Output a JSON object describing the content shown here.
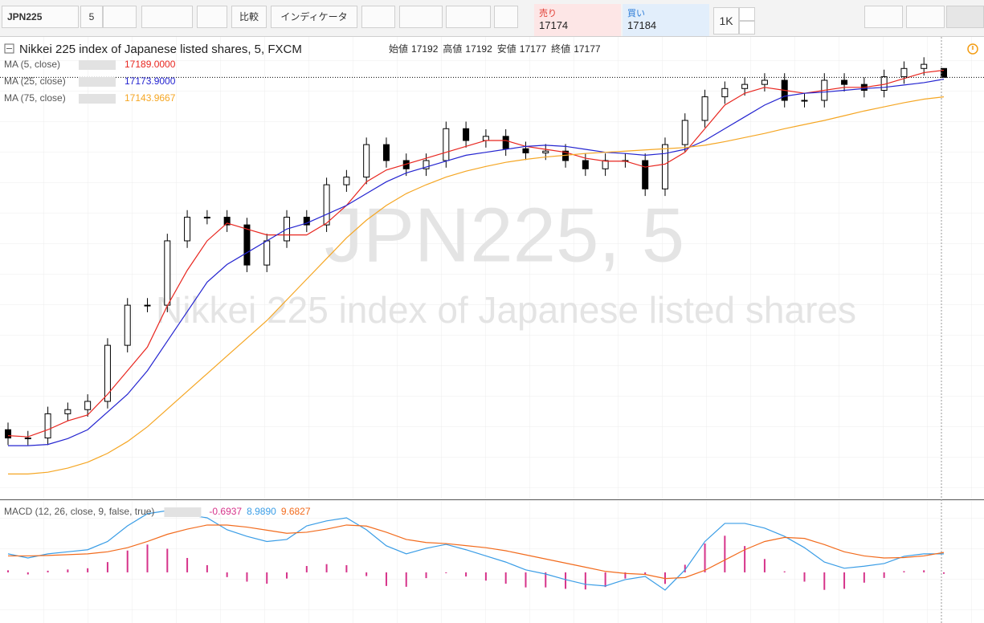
{
  "toolbar": {
    "symbol": "JPN225",
    "interval": "5",
    "compare": "比較",
    "indicators": "インディケータ",
    "sell": {
      "label": "売り",
      "price": 17174
    },
    "buy": {
      "label": "買い",
      "price": 17184
    },
    "quantity": "1K"
  },
  "chart_data": [
    {
      "type": "candlestick",
      "title": "Nikkei 225 index of Japanese listed shares, 5, FXCM",
      "watermark": "JPN225, 5",
      "watermark_subtitle": "Nikkei 225 index of Japanese listed shares",
      "ohlc_labels": [
        {
          "label": "始値",
          "value": 17192
        },
        {
          "label": "高値",
          "value": 17192
        },
        {
          "label": "安値",
          "value": 17177
        },
        {
          "label": "終値",
          "value": 17177
        }
      ],
      "up_color": "#ffffff",
      "down_color": "#000000",
      "ylim": [
        16462,
        17240
      ],
      "open": [
        16580,
        16566,
        16566,
        16607,
        16614,
        16628,
        16723,
        16791,
        16791,
        16900,
        16940,
        16940,
        16927,
        16859,
        16900,
        16940,
        16927,
        16995,
        17008,
        17063,
        17036,
        17022,
        17036,
        17090,
        17070,
        17077,
        17056,
        17049,
        17052,
        17036,
        17022,
        17036,
        17036,
        16988,
        17063,
        17104,
        17144,
        17158,
        17165,
        17172,
        17138,
        17138,
        17172,
        17165,
        17155,
        17178,
        17192,
        17192
      ],
      "high": [
        16592,
        16578,
        16619,
        16626,
        16640,
        16735,
        16803,
        16803,
        16912,
        16952,
        16952,
        16952,
        16939,
        16912,
        16952,
        16952,
        17007,
        17020,
        17075,
        17075,
        17048,
        17048,
        17102,
        17102,
        17089,
        17089,
        17068,
        17064,
        17064,
        17048,
        17048,
        17048,
        17048,
        17075,
        17116,
        17156,
        17170,
        17177,
        17184,
        17184,
        17150,
        17184,
        17184,
        17177,
        17190,
        17204,
        17211,
        17192
      ],
      "low": [
        16554,
        16554,
        16554,
        16595,
        16602,
        16616,
        16711,
        16779,
        16779,
        16888,
        16928,
        16915,
        16847,
        16847,
        16888,
        16915,
        16915,
        16983,
        16996,
        17024,
        17010,
        17010,
        17024,
        17058,
        17058,
        17044,
        17037,
        17037,
        17024,
        17010,
        17010,
        17024,
        16976,
        16976,
        17051,
        17092,
        17132,
        17146,
        17153,
        17126,
        17126,
        17126,
        17153,
        17143,
        17143,
        17166,
        17180,
        17177
      ],
      "close": [
        16566,
        16566,
        16607,
        16614,
        16628,
        16723,
        16791,
        16791,
        16900,
        16940,
        16940,
        16927,
        16859,
        16900,
        16940,
        16927,
        16995,
        17008,
        17063,
        17036,
        17022,
        17036,
        17090,
        17070,
        17077,
        17056,
        17049,
        17052,
        17036,
        17022,
        17036,
        17036,
        16988,
        17063,
        17104,
        17144,
        17158,
        17165,
        17172,
        17138,
        17138,
        17172,
        17165,
        17155,
        17178,
        17192,
        17199,
        17177
      ],
      "series": [
        {
          "name": "MA (5, close)",
          "color": "#e8261f",
          "value_label": "17189.0000",
          "values": [
            16570,
            16568,
            16580,
            16595,
            16605,
            16640,
            16680,
            16720,
            16790,
            16850,
            16900,
            16930,
            16920,
            16910,
            16910,
            16910,
            16930,
            16960,
            17000,
            17020,
            17030,
            17040,
            17050,
            17060,
            17070,
            17070,
            17060,
            17055,
            17050,
            17040,
            17035,
            17035,
            17025,
            17030,
            17050,
            17090,
            17130,
            17150,
            17160,
            17155,
            17150,
            17155,
            17160,
            17160,
            17165,
            17175,
            17185,
            17189
          ]
        },
        {
          "name": "MA (25, close)",
          "color": "#2424d0",
          "value_label": "17173.9000",
          "values": [
            16553,
            16553,
            16555,
            16565,
            16580,
            16610,
            16640,
            16680,
            16730,
            16780,
            16830,
            16860,
            16880,
            16900,
            16920,
            16930,
            16945,
            16960,
            16980,
            17000,
            17015,
            17025,
            17035,
            17045,
            17050,
            17055,
            17060,
            17062,
            17060,
            17055,
            17050,
            17048,
            17045,
            17048,
            17055,
            17070,
            17090,
            17110,
            17130,
            17145,
            17150,
            17152,
            17155,
            17158,
            17160,
            17164,
            17168,
            17173.9
          ]
        },
        {
          "name": "MA (75, close)",
          "color": "#f5a623",
          "values": [
            16505,
            16505,
            16508,
            16515,
            16525,
            16540,
            16560,
            16585,
            16615,
            16645,
            16675,
            16705,
            16735,
            16765,
            16800,
            16835,
            16870,
            16905,
            16935,
            16960,
            16980,
            16995,
            17008,
            17018,
            17026,
            17033,
            17038,
            17042,
            17045,
            17048,
            17050,
            17052,
            17054,
            17056,
            17058,
            17062,
            17068,
            17075,
            17082,
            17090,
            17097,
            17104,
            17112,
            17120,
            17127,
            17134,
            17140,
            17143.9667
          ]
        }
      ]
    },
    {
      "type": "macd",
      "title": "MACD (12, 26, close, 9, false, true)",
      "ylim": [
        -24.6,
        34.3
      ],
      "histogram": {
        "color": "#d6338a",
        "values": [
          1,
          -1,
          0.8,
          1.4,
          2,
          5,
          10.6,
          13.5,
          11.5,
          7,
          3.5,
          -2.3,
          -4.5,
          -5.5,
          -3,
          3.1,
          4,
          3.5,
          -1.8,
          -6.6,
          -7,
          -2.8,
          -0.4,
          -2,
          -4,
          -5.5,
          -7.3,
          -7.3,
          -8,
          -8.3,
          -7.1,
          -3,
          -1,
          -5.6,
          3.7,
          14,
          17.8,
          12.8,
          6.5,
          0.5,
          -4.5,
          -8.5,
          -8,
          -5,
          -2.7,
          0.6,
          1,
          -0.6937
        ]
      },
      "series": [
        {
          "color": "#3a9de6",
          "value_label": "8.9890",
          "values": [
            9,
            7,
            9,
            10,
            11,
            15,
            22.6,
            28.5,
            30,
            28,
            26.5,
            20.7,
            17.5,
            15,
            16,
            22.6,
            25,
            26.5,
            20.7,
            12.9,
            9,
            11.7,
            13.6,
            11,
            8,
            5,
            1.2,
            -0.8,
            -3.5,
            -5.8,
            -6.6,
            -3.5,
            -2,
            -8.6,
            1.2,
            15,
            23.8,
            23.8,
            21.5,
            17.5,
            12,
            5,
            2,
            3,
            4.3,
            7.8,
            9,
            8.989
          ]
        },
        {
          "color": "#f26b1d",
          "values": [
            8,
            8,
            8.2,
            8.6,
            9,
            10,
            12,
            15,
            18.5,
            21,
            23,
            23,
            22,
            20.5,
            19,
            19.5,
            21,
            23,
            22.5,
            19.5,
            16,
            14.5,
            14,
            13,
            12,
            10.5,
            8.5,
            6.5,
            4.5,
            2.5,
            0.5,
            -0.5,
            -1,
            -3,
            -2.5,
            1,
            6,
            11,
            15,
            17,
            16.5,
            13.5,
            10,
            8,
            7,
            7.2,
            8,
            9.6827
          ]
        }
      ]
    }
  ]
}
